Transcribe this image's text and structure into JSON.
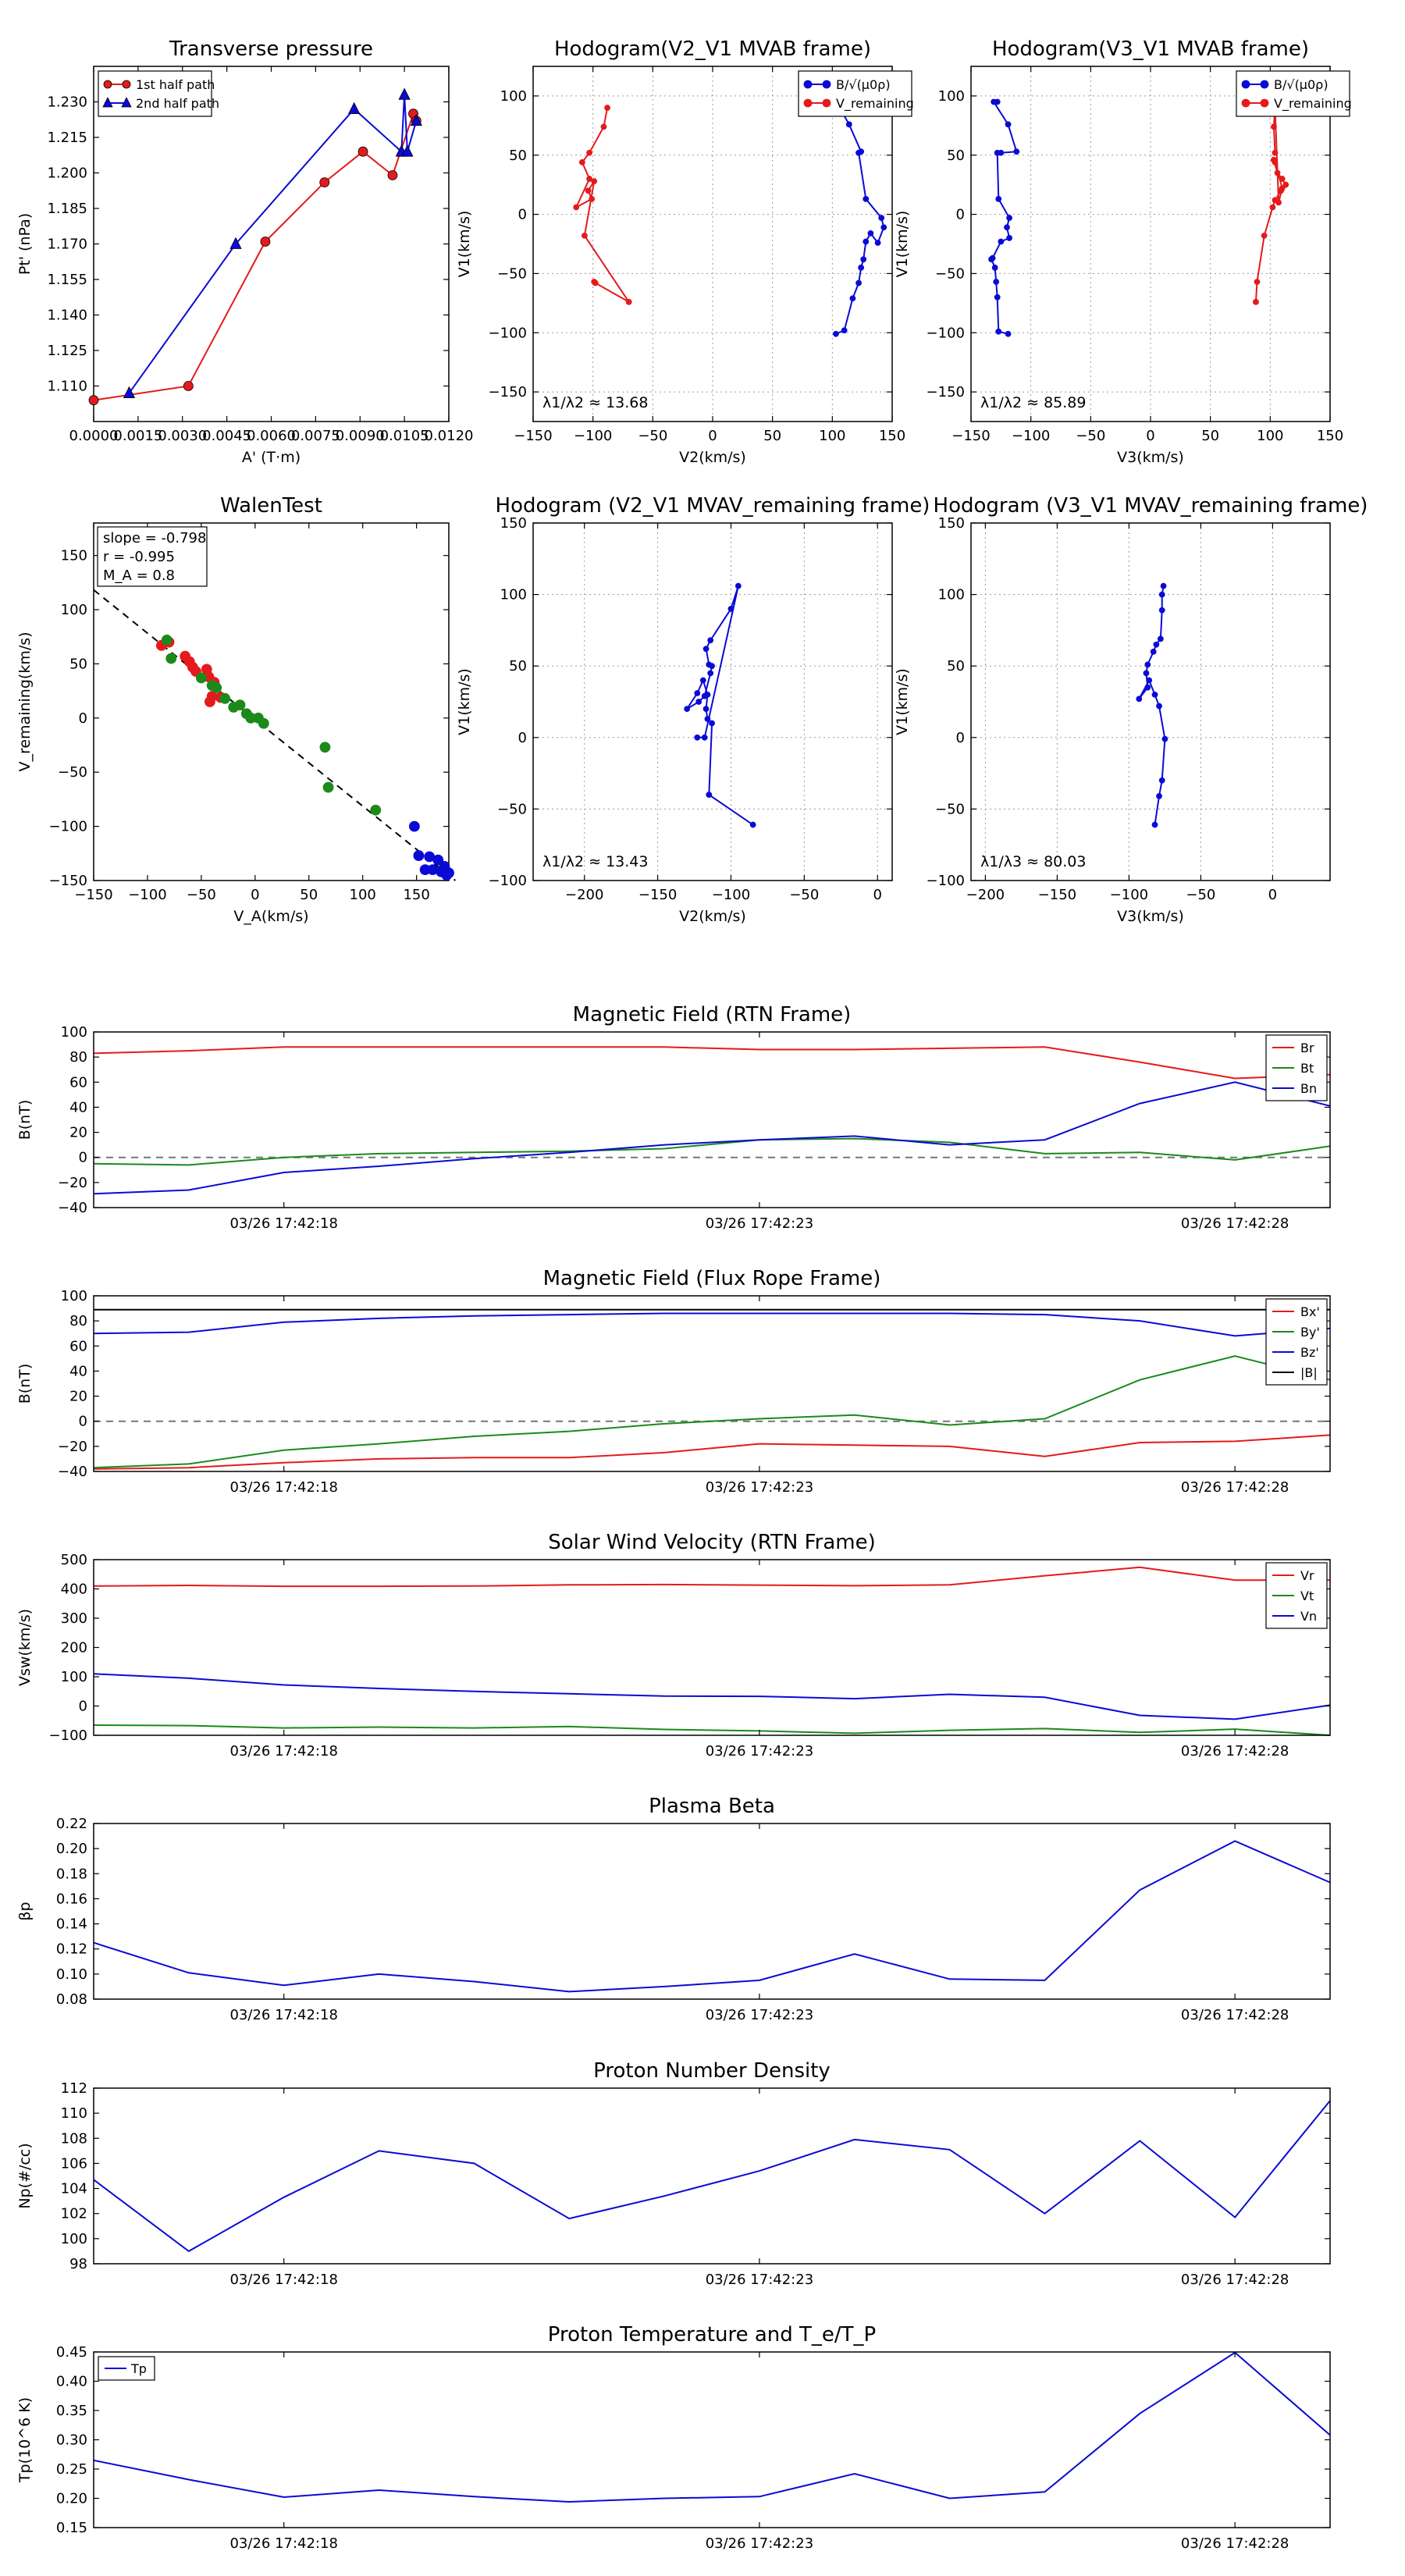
{
  "colors": {
    "red": "#e41a1c",
    "blue": "#0a0ad6",
    "green": "#1b8a1b",
    "black": "#000000",
    "grid": "#9a9a9a"
  },
  "chart_data": [
    {
      "type": "scatter",
      "title": "Transverse pressure",
      "xlabel": "A' (T·m)",
      "ylabel": "Pt' (nPa)",
      "xlim": [
        0.0,
        0.012
      ],
      "ylim": [
        1.095,
        1.245
      ],
      "xticks": [
        0.0,
        0.0015,
        0.003,
        0.0045,
        0.006,
        0.0075,
        0.009,
        0.0105,
        0.012
      ],
      "xtick_labels": [
        "0.0000",
        "0.0015",
        "0.0030",
        "0.0045",
        "0.0060",
        "0.0075",
        "0.0090",
        "0.0105",
        "0.0120"
      ],
      "yticks": [
        1.11,
        1.125,
        1.14,
        1.155,
        1.17,
        1.185,
        1.2,
        1.215,
        1.23
      ],
      "ytick_labels": [
        "1.110",
        "1.125",
        "1.140",
        "1.155",
        "1.170",
        "1.185",
        "1.200",
        "1.215",
        "1.230"
      ],
      "legend_position": "top-left",
      "series": [
        {
          "name": "1st half path",
          "color": "red",
          "marker": "circle",
          "x": [
            0.0,
            0.0032,
            0.0058,
            0.0078,
            0.0091,
            0.0101,
            0.0108,
            0.0109
          ],
          "y": [
            1.104,
            1.11,
            1.171,
            1.196,
            1.209,
            1.199,
            1.225,
            1.222
          ]
        },
        {
          "name": "2nd half path",
          "color": "blue",
          "marker": "triangle",
          "x": [
            0.0012,
            0.0048,
            0.0088,
            0.0104,
            0.0105,
            0.0106,
            0.0109
          ],
          "y": [
            1.107,
            1.17,
            1.227,
            1.209,
            1.233,
            1.209,
            1.222
          ]
        }
      ]
    },
    {
      "type": "line",
      "title": "Hodogram(V2_V1 MVAB frame)",
      "xlabel": "V2(km/s)",
      "ylabel": "V1(km/s)",
      "xlim": [
        -150,
        150
      ],
      "ylim": [
        -175,
        125
      ],
      "xticks": [
        -150,
        -100,
        -50,
        0,
        50,
        100,
        150
      ],
      "yticks": [
        -150,
        -100,
        -50,
        0,
        50,
        100
      ],
      "grid": true,
      "legend_position": "top-right",
      "annotation": "λ1/λ2 ≈ 13.68",
      "series": [
        {
          "name": "B/√(μ0ρ)",
          "color": "blue",
          "x": [
            103,
            110,
            117,
            122,
            124,
            126,
            128,
            132,
            138,
            143,
            141,
            128,
            122,
            124,
            114,
            109,
            106,
            102
          ],
          "y": [
            -101,
            -98,
            -71,
            -58,
            -45,
            -38,
            -23,
            -16,
            -24,
            -11,
            -3,
            13,
            52,
            53,
            76,
            85,
            92,
            100
          ]
        },
        {
          "name": "V_remaining",
          "color": "red",
          "x": [
            -88,
            -91,
            -103,
            -109,
            -103,
            -114,
            -101,
            -104,
            -99,
            -107,
            -70,
            -98,
            -99
          ],
          "y": [
            90,
            74,
            52,
            44,
            30,
            6,
            13,
            20,
            28,
            -18,
            -74,
            -58,
            -57
          ]
        }
      ]
    },
    {
      "type": "line",
      "title": "Hodogram(V3_V1 MVAB frame)",
      "xlabel": "V3(km/s)",
      "ylabel": "V1(km/s)",
      "xlim": [
        -150,
        150
      ],
      "ylim": [
        -175,
        125
      ],
      "xticks": [
        -150,
        -100,
        -50,
        0,
        50,
        100,
        150
      ],
      "yticks": [
        -150,
        -100,
        -50,
        0,
        50,
        100
      ],
      "grid": true,
      "legend_position": "top-right",
      "annotation": "λ1/λ2 ≈ 85.89",
      "series": [
        {
          "name": "B/√(μ0ρ)",
          "color": "blue",
          "x": [
            -119,
            -127,
            -128,
            -129,
            -130,
            -133,
            -132,
            -125,
            -118,
            -120,
            -118,
            -127,
            -128,
            -125,
            -112,
            -119,
            -131,
            -128
          ],
          "y": [
            -101,
            -99,
            -70,
            -57,
            -45,
            -38,
            -37,
            -23,
            -20,
            -11,
            -3,
            13,
            52,
            52,
            53,
            76,
            95,
            95
          ]
        },
        {
          "name": "V_remaining",
          "color": "red",
          "x": [
            88,
            89,
            95,
            102,
            104,
            109,
            113,
            110,
            106,
            103,
            104,
            110,
            107,
            104,
            103,
            104
          ],
          "y": [
            -74,
            -57,
            -18,
            6,
            12,
            20,
            25,
            30,
            35,
            46,
            44,
            22,
            10,
            90,
            74,
            52
          ]
        }
      ]
    },
    {
      "type": "scatter",
      "title": "WalenTest",
      "xlabel": "V_A(km/s)",
      "ylabel": "V_remaining(km/s)",
      "xlim": [
        -150,
        180
      ],
      "ylim": [
        -150,
        180
      ],
      "xticks": [
        -150,
        -100,
        -50,
        0,
        50,
        100,
        150
      ],
      "yticks": [
        -150,
        -100,
        -50,
        0,
        50,
        100,
        150
      ],
      "fit": {
        "slope": -0.798,
        "intercept": -1.5
      },
      "stats": {
        "slope": "slope = -0.798",
        "r": "r = -0.995",
        "ma": "M_A = 0.8"
      },
      "series": [
        {
          "name": "red",
          "color": "red",
          "x": [
            -87,
            -80,
            -65,
            -61,
            -58,
            -55,
            -45,
            -43,
            -40,
            -42,
            -38,
            -32
          ],
          "y": [
            67,
            70,
            57,
            52,
            47,
            43,
            45,
            38,
            20,
            15,
            33,
            19
          ]
        },
        {
          "name": "green",
          "color": "green",
          "x": [
            -82,
            -78,
            -50,
            -40,
            -36,
            -28,
            -20,
            -14,
            -8,
            -4,
            3,
            8,
            65,
            68,
            112
          ],
          "y": [
            72,
            55,
            37,
            30,
            28,
            18,
            10,
            12,
            4,
            0,
            0,
            -5,
            -27,
            -64,
            -85
          ]
        },
        {
          "name": "blue",
          "color": "blue",
          "x": [
            148,
            152,
            158,
            162,
            165,
            170,
            173,
            176,
            178,
            180
          ],
          "y": [
            -100,
            -127,
            -140,
            -128,
            -140,
            -131,
            -142,
            -137,
            -145,
            -143
          ]
        }
      ]
    },
    {
      "type": "line",
      "title": "Hodogram (V2_V1 MVAV_remaining frame)",
      "xlabel": "V2(km/s)",
      "ylabel": "V1(km/s)",
      "xlim": [
        -235,
        10
      ],
      "ylim": [
        -100,
        150
      ],
      "xticks": [
        -200,
        -150,
        -100,
        -50,
        0
      ],
      "yticks": [
        -100,
        -50,
        0,
        50,
        100,
        150
      ],
      "grid": true,
      "annotation": "λ1/λ2 ≈ 13.43",
      "series": [
        {
          "name": "B",
          "color": "blue",
          "x": [
            -85,
            -115,
            -113,
            -116,
            -117,
            -116,
            -119,
            -123,
            -130,
            -122,
            -118,
            -114,
            -113,
            -115,
            -117,
            -114,
            -100,
            -95,
            -118,
            -123
          ],
          "y": [
            -61,
            -40,
            10,
            13,
            20,
            30,
            40,
            31,
            20,
            25,
            29,
            45,
            50,
            51,
            62,
            68,
            90,
            106,
            0,
            0
          ]
        }
      ]
    },
    {
      "type": "line",
      "title": "Hodogram (V3_V1 MVAV_remaining frame)",
      "xlabel": "V3(km/s)",
      "ylabel": "V1(km/s)",
      "xlim": [
        -210,
        40
      ],
      "ylim": [
        -100,
        150
      ],
      "xticks": [
        -200,
        -150,
        -100,
        -50,
        0
      ],
      "yticks": [
        -100,
        -50,
        0,
        50,
        100,
        150
      ],
      "grid": true,
      "annotation": "λ1/λ3 ≈ 80.03",
      "series": [
        {
          "name": "B",
          "color": "blue",
          "x": [
            -82,
            -79,
            -77,
            -75,
            -79,
            -82,
            -86,
            -93,
            -87,
            -88,
            -87,
            -83,
            -81,
            -78,
            -77,
            -77,
            -76
          ],
          "y": [
            -61,
            -41,
            -30,
            -1,
            22,
            30,
            40,
            27,
            35,
            45,
            51,
            60,
            65,
            69,
            89,
            100,
            106
          ]
        }
      ]
    },
    {
      "type": "line",
      "title": "Magnetic Field (RTN Frame)",
      "ylabel": "B(nT)",
      "ylim": [
        -40,
        100
      ],
      "yticks": [
        -40,
        -20,
        0,
        20,
        40,
        60,
        80,
        100
      ],
      "x_points": 14,
      "xtick_positions": [
        2,
        7,
        12
      ],
      "xtick_labels": [
        "03/26 17:42:18",
        "03/26 17:42:23",
        "03/26 17:42:28"
      ],
      "zero_line": true,
      "legend_position": "top-right",
      "series": [
        {
          "name": "Br",
          "color": "red",
          "values": [
            83,
            85,
            88,
            88,
            88,
            88,
            88,
            86,
            86,
            87,
            88,
            76,
            63,
            66
          ]
        },
        {
          "name": "Bt",
          "color": "green",
          "values": [
            -5,
            -6,
            0,
            3,
            4,
            5,
            7,
            14,
            15,
            12,
            3,
            4,
            -2,
            9
          ]
        },
        {
          "name": "Bn",
          "color": "blue",
          "values": [
            -29,
            -26,
            -12,
            -7,
            -1,
            4,
            10,
            14,
            17,
            10,
            14,
            43,
            60,
            41
          ]
        }
      ]
    },
    {
      "type": "line",
      "title": "Magnetic Field (Flux Rope Frame)",
      "ylabel": "B(nT)",
      "ylim": [
        -40,
        100
      ],
      "yticks": [
        -40,
        -20,
        0,
        20,
        40,
        60,
        80,
        100
      ],
      "x_points": 14,
      "xtick_positions": [
        2,
        7,
        12
      ],
      "xtick_labels": [
        "03/26 17:42:18",
        "03/26 17:42:23",
        "03/26 17:42:28"
      ],
      "zero_line": true,
      "legend_position": "top-right",
      "series": [
        {
          "name": "Bx'",
          "color": "red",
          "values": [
            -38,
            -37,
            -33,
            -30,
            -29,
            -29,
            -25,
            -18,
            -19,
            -20,
            -28,
            -17,
            -16,
            -11
          ]
        },
        {
          "name": "By'",
          "color": "green",
          "values": [
            -37,
            -34,
            -23,
            -18,
            -12,
            -8,
            -2,
            2,
            5,
            -3,
            2,
            33,
            52,
            33
          ]
        },
        {
          "name": "Bz'",
          "color": "blue",
          "values": [
            70,
            71,
            79,
            82,
            84,
            85,
            86,
            86,
            86,
            86,
            85,
            80,
            68,
            74
          ]
        },
        {
          "name": "|B|",
          "color": "black",
          "values": [
            89,
            89,
            89,
            89,
            89,
            89,
            89,
            89,
            89,
            89,
            89,
            89,
            89,
            89
          ]
        }
      ]
    },
    {
      "type": "line",
      "title": "Solar Wind Velocity (RTN Frame)",
      "ylabel": "Vsw(km/s)",
      "ylim": [
        -100,
        500
      ],
      "yticks": [
        -100,
        0,
        100,
        200,
        300,
        400,
        500
      ],
      "x_points": 14,
      "xtick_positions": [
        2,
        7,
        12
      ],
      "xtick_labels": [
        "03/26 17:42:18",
        "03/26 17:42:23",
        "03/26 17:42:28"
      ],
      "legend_position": "top-right",
      "series": [
        {
          "name": "Vr",
          "color": "red",
          "values": [
            410,
            412,
            409,
            409,
            410,
            414,
            415,
            413,
            411,
            414,
            445,
            474,
            430,
            430
          ]
        },
        {
          "name": "Vt",
          "color": "green",
          "values": [
            -65,
            -67,
            -75,
            -72,
            -75,
            -70,
            -80,
            -85,
            -93,
            -83,
            -77,
            -90,
            -79,
            -100
          ]
        },
        {
          "name": "Vn",
          "color": "blue",
          "values": [
            110,
            95,
            72,
            60,
            50,
            42,
            34,
            33,
            25,
            40,
            30,
            -32,
            -45,
            3
          ]
        }
      ]
    },
    {
      "type": "line",
      "title": "Plasma Beta",
      "ylabel": "βp",
      "ylim": [
        0.08,
        0.22
      ],
      "yticks": [
        0.08,
        0.1,
        0.12,
        0.14,
        0.16,
        0.18,
        0.2,
        0.22
      ],
      "ytick_labels": [
        "0.08",
        "0.10",
        "0.12",
        "0.14",
        "0.16",
        "0.18",
        "0.20",
        "0.22"
      ],
      "x_points": 14,
      "xtick_positions": [
        2,
        7,
        12
      ],
      "xtick_labels": [
        "03/26 17:42:18",
        "03/26 17:42:23",
        "03/26 17:42:28"
      ],
      "series": [
        {
          "name": "beta",
          "color": "blue",
          "values": [
            0.125,
            0.101,
            0.091,
            0.1,
            0.094,
            0.086,
            0.09,
            0.095,
            0.116,
            0.096,
            0.095,
            0.167,
            0.206,
            0.173
          ]
        }
      ]
    },
    {
      "type": "line",
      "title": "Proton Number Density",
      "ylabel": "Np(#/cc)",
      "ylim": [
        98,
        112
      ],
      "yticks": [
        98,
        100,
        102,
        104,
        106,
        108,
        110,
        112
      ],
      "x_points": 14,
      "xtick_positions": [
        2,
        7,
        12
      ],
      "xtick_labels": [
        "03/26 17:42:18",
        "03/26 17:42:23",
        "03/26 17:42:28"
      ],
      "series": [
        {
          "name": "Np",
          "color": "blue",
          "values": [
            104.7,
            99,
            103.3,
            107,
            106,
            101.6,
            103.4,
            105.4,
            107.9,
            107.1,
            102,
            107.8,
            101.7,
            111
          ]
        }
      ]
    },
    {
      "type": "line",
      "title": "Proton Temperature and T_e/T_P",
      "ylabel": "Tp(10^6 K)",
      "ylim": [
        0.15,
        0.45
      ],
      "yticks": [
        0.15,
        0.2,
        0.25,
        0.3,
        0.35,
        0.4,
        0.45
      ],
      "ytick_labels": [
        "0.15",
        "0.20",
        "0.25",
        "0.30",
        "0.35",
        "0.40",
        "0.45"
      ],
      "x_points": 14,
      "xtick_positions": [
        2,
        7,
        12
      ],
      "xtick_labels": [
        "03/26 17:42:18",
        "03/26 17:42:23",
        "03/26 17:42:28"
      ],
      "legend_position": "top-left",
      "series": [
        {
          "name": "Tp",
          "color": "blue",
          "values": [
            0.265,
            0.232,
            0.202,
            0.214,
            0.203,
            0.194,
            0.2,
            0.203,
            0.242,
            0.2,
            0.211,
            0.345,
            0.449,
            0.308
          ]
        }
      ]
    }
  ]
}
